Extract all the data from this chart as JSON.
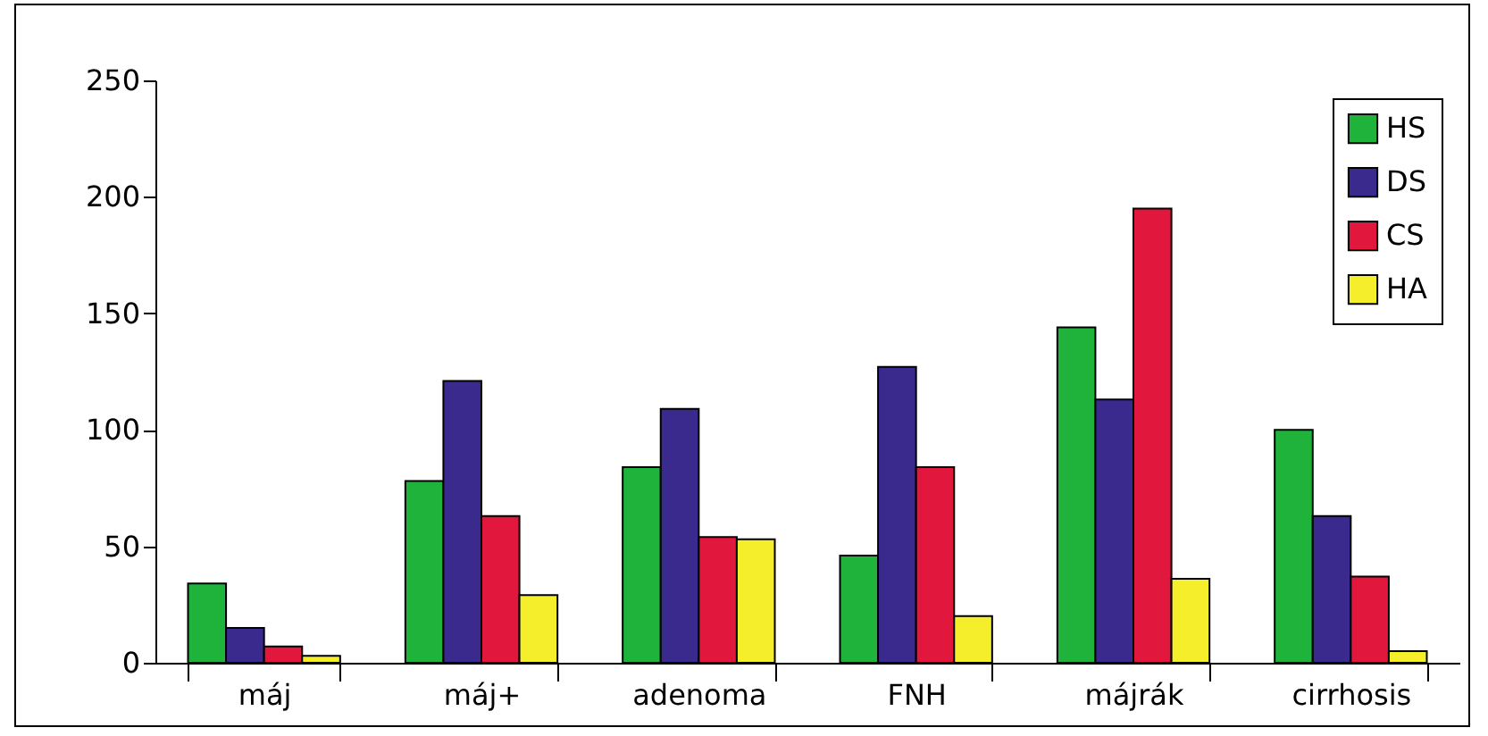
{
  "chart_data": {
    "type": "bar",
    "categories": [
      "máj",
      "máj+",
      "adenoma",
      "FNH",
      "májrák",
      "cirrhosis"
    ],
    "series": [
      {
        "name": "HS",
        "color": "#1fb33c",
        "values": [
          34,
          78,
          84,
          46,
          144,
          100
        ]
      },
      {
        "name": "DS",
        "color": "#3a2a8e",
        "values": [
          15,
          121,
          109,
          127,
          113,
          63
        ]
      },
      {
        "name": "CS",
        "color": "#e2173d",
        "values": [
          7,
          63,
          54,
          84,
          195,
          37
        ]
      },
      {
        "name": "HA",
        "color": "#f5ee2a",
        "values": [
          3,
          29,
          53,
          20,
          36,
          5
        ]
      }
    ],
    "ylim": [
      0,
      250
    ],
    "yticks": [
      0,
      50,
      100,
      150,
      200,
      250
    ],
    "grid": false,
    "legend": "top right"
  }
}
